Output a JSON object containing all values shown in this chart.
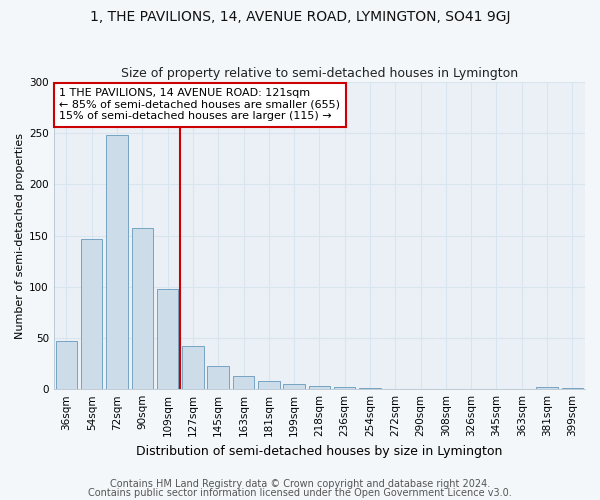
{
  "title": "1, THE PAVILIONS, 14, AVENUE ROAD, LYMINGTON, SO41 9GJ",
  "subtitle": "Size of property relative to semi-detached houses in Lymington",
  "xlabel": "Distribution of semi-detached houses by size in Lymington",
  "ylabel": "Number of semi-detached properties",
  "categories": [
    "36sqm",
    "54sqm",
    "72sqm",
    "90sqm",
    "109sqm",
    "127sqm",
    "145sqm",
    "163sqm",
    "181sqm",
    "199sqm",
    "218sqm",
    "236sqm",
    "254sqm",
    "272sqm",
    "290sqm",
    "308sqm",
    "326sqm",
    "345sqm",
    "363sqm",
    "381sqm",
    "399sqm"
  ],
  "values": [
    47,
    147,
    248,
    157,
    98,
    42,
    23,
    13,
    8,
    5,
    3,
    2,
    1,
    0,
    0,
    0,
    0,
    0,
    0,
    2,
    1
  ],
  "bar_color": "#ccdce8",
  "bar_edge_color": "#6699bb",
  "subject_line_label": "1 THE PAVILIONS, 14 AVENUE ROAD: 121sqm",
  "subject_line_smaller": "← 85% of semi-detached houses are smaller (655)",
  "subject_line_larger": "15% of semi-detached houses are larger (115) →",
  "red_line_index": 5,
  "red_line_color": "#cc0000",
  "annotation_box_edge": "#cc0000",
  "grid_color": "#d8e4ee",
  "plot_bg_color": "#eaf0f6",
  "fig_bg_color": "#f4f7fa",
  "footer1": "Contains HM Land Registry data © Crown copyright and database right 2024.",
  "footer2": "Contains public sector information licensed under the Open Government Licence v3.0.",
  "ylim": [
    0,
    300
  ],
  "yticks": [
    0,
    50,
    100,
    150,
    200,
    250,
    300
  ],
  "title_fontsize": 10,
  "subtitle_fontsize": 9,
  "xlabel_fontsize": 9,
  "ylabel_fontsize": 8,
  "tick_fontsize": 7.5,
  "annot_fontsize": 8,
  "footer_fontsize": 7
}
